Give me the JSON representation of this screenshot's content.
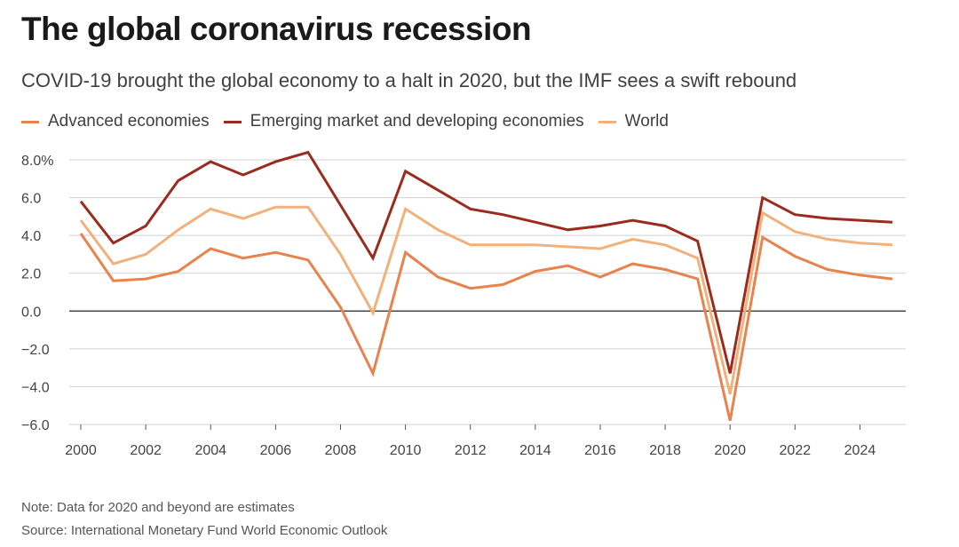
{
  "title": "The global coronavirus recession",
  "subtitle": "COVID-19 brought the global economy to a halt in 2020, but the IMF sees a swift rebound",
  "note": "Note: Data for 2020 and beyond are estimates",
  "source": "Source: International Monetary Fund World Economic Outlook",
  "colors": {
    "advanced": "#e8834e",
    "emerging": "#9b2b1d",
    "world": "#f2b07a",
    "grid": "#d0d0d0",
    "zero": "#222222"
  },
  "chart_data": {
    "type": "line",
    "x": [
      2000,
      2001,
      2002,
      2003,
      2004,
      2005,
      2006,
      2007,
      2008,
      2009,
      2010,
      2011,
      2012,
      2013,
      2014,
      2015,
      2016,
      2017,
      2018,
      2019,
      2020,
      2021,
      2022,
      2023,
      2024,
      2025
    ],
    "series": [
      {
        "name": "Advanced economies",
        "color": "#e8834e",
        "values": [
          4.1,
          1.6,
          1.7,
          2.1,
          3.3,
          2.8,
          3.1,
          2.7,
          0.2,
          -3.3,
          3.1,
          1.8,
          1.2,
          1.4,
          2.1,
          2.4,
          1.8,
          2.5,
          2.2,
          1.7,
          -5.8,
          3.9,
          2.9,
          2.2,
          1.9,
          1.7
        ]
      },
      {
        "name": "Emerging market and developing economies",
        "color": "#9b2b1d",
        "values": [
          5.8,
          3.6,
          4.5,
          6.9,
          7.9,
          7.2,
          7.9,
          8.4,
          5.6,
          2.8,
          7.4,
          6.4,
          5.4,
          5.1,
          4.7,
          4.3,
          4.5,
          4.8,
          4.5,
          3.7,
          -3.3,
          6.0,
          5.1,
          4.9,
          4.8,
          4.7
        ]
      },
      {
        "name": "World",
        "color": "#f2b07a",
        "values": [
          4.8,
          2.5,
          3.0,
          4.3,
          5.4,
          4.9,
          5.5,
          5.5,
          3.0,
          -0.1,
          5.4,
          4.3,
          3.5,
          3.5,
          3.5,
          3.4,
          3.3,
          3.8,
          3.5,
          2.8,
          -4.4,
          5.2,
          4.2,
          3.8,
          3.6,
          3.5
        ]
      }
    ],
    "ylim": [
      -6,
      8
    ],
    "y_ticks": [
      8,
      6,
      4,
      2,
      0,
      -2,
      -4,
      -6
    ],
    "y_tick_labels": [
      "8.0%",
      "6.0",
      "4.0",
      "2.0",
      "0.0",
      "−2.0",
      "−4.0",
      "−6.0"
    ],
    "x_ticks": [
      2000,
      2002,
      2004,
      2006,
      2008,
      2010,
      2012,
      2014,
      2016,
      2018,
      2020,
      2022,
      2024
    ],
    "x_tick_labels": [
      "2000",
      "2002",
      "2004",
      "2006",
      "2008",
      "2010",
      "2012",
      "2014",
      "2016",
      "2018",
      "2020",
      "2022",
      "2024"
    ],
    "grid": true,
    "legend_position": "top-left"
  }
}
